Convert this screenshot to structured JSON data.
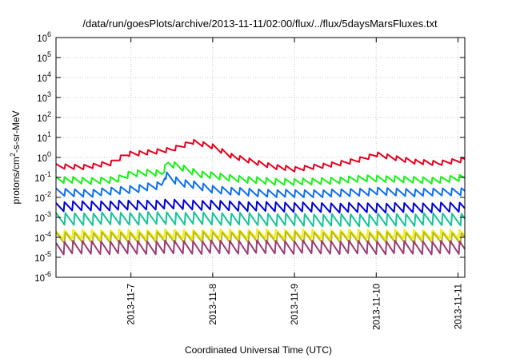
{
  "chart_data": {
    "type": "line",
    "title": "/data/run/goesPlots/archive/2013-11-11/02:00/flux/../flux/5daysMarsFluxes.txt",
    "xlabel": "Coordinated Universal Time (UTC)",
    "ylabel": "protons/cm²-s-sr-MeV",
    "ylabel_parts": {
      "pre": "protons/cm",
      "sup": "2",
      "post": "-s-sr-MeV"
    },
    "y_scale": "log",
    "ylim_exponents": [
      -6,
      6
    ],
    "yticks": [
      {
        "base": "10",
        "exp": "-6",
        "value": 1e-06
      },
      {
        "base": "10",
        "exp": "-5",
        "value": 1e-05
      },
      {
        "base": "10",
        "exp": "-4",
        "value": 0.0001
      },
      {
        "base": "10",
        "exp": "-3",
        "value": 0.001
      },
      {
        "base": "10",
        "exp": "-2",
        "value": 0.01
      },
      {
        "base": "10",
        "exp": "-1",
        "value": 0.1
      },
      {
        "base": "10",
        "exp": "0",
        "value": 1
      },
      {
        "base": "10",
        "exp": "1",
        "value": 10
      },
      {
        "base": "10",
        "exp": "2",
        "value": 100
      },
      {
        "base": "10",
        "exp": "3",
        "value": 1000
      },
      {
        "base": "10",
        "exp": "4",
        "value": 10000
      },
      {
        "base": "10",
        "exp": "5",
        "value": 100000
      },
      {
        "base": "10",
        "exp": "6",
        "value": 1000000
      }
    ],
    "xlim": [
      "2013-11-06 02:00",
      "2013-11-11 02:00"
    ],
    "xticks": [
      {
        "label": "2013-11-7",
        "date": "2013-11-07 00:00"
      },
      {
        "label": "2013-11-8",
        "date": "2013-11-08 00:00"
      },
      {
        "label": "2013-11-9",
        "date": "2013-11-09 00:00"
      },
      {
        "label": "2013-11-10",
        "date": "2013-11-10 00:00"
      },
      {
        "label": "2013-11-11",
        "date": "2013-11-11 00:00"
      }
    ],
    "grid": true,
    "sawtooth_period_hours": 2.7,
    "series": [
      {
        "color": "#e8001e",
        "points": [
          [
            "2013-11-06 02:00",
            0.35
          ],
          [
            "2013-11-06 10:00",
            0.33
          ],
          [
            "2013-11-06 18:00",
            0.5
          ],
          [
            "2013-11-06 23:00",
            1.5
          ],
          [
            "2013-11-07 06:00",
            1.8
          ],
          [
            "2013-11-07 12:00",
            2.5
          ],
          [
            "2013-11-07 18:00",
            6.0
          ],
          [
            "2013-11-08 00:00",
            3.5
          ],
          [
            "2013-11-08 06:00",
            1.1
          ],
          [
            "2013-11-08 12:00",
            0.6
          ],
          [
            "2013-11-08 18:00",
            0.35
          ],
          [
            "2013-11-09 00:00",
            0.25
          ],
          [
            "2013-11-09 06:00",
            0.35
          ],
          [
            "2013-11-09 12:00",
            0.45
          ],
          [
            "2013-11-09 18:00",
            0.7
          ],
          [
            "2013-11-10 00:00",
            1.4
          ],
          [
            "2013-11-10 06:00",
            0.9
          ],
          [
            "2013-11-10 12:00",
            0.6
          ],
          [
            "2013-11-10 18:00",
            0.5
          ],
          [
            "2013-11-11 02:00",
            0.8
          ]
        ],
        "tooth_factor": 1.8
      },
      {
        "color": "#16f316",
        "points": [
          [
            "2013-11-06 02:00",
            0.08
          ],
          [
            "2013-11-06 12:00",
            0.065
          ],
          [
            "2013-11-06 20:00",
            0.08
          ],
          [
            "2013-11-07 00:00",
            0.15
          ],
          [
            "2013-11-07 06:00",
            0.18
          ],
          [
            "2013-11-07 09:00",
            0.16
          ],
          [
            "2013-11-07 11:00",
            0.5
          ],
          [
            "2013-11-07 14:00",
            0.35
          ],
          [
            "2013-11-07 20:00",
            0.15
          ],
          [
            "2013-11-08 06:00",
            0.09
          ],
          [
            "2013-11-08 18:00",
            0.06
          ],
          [
            "2013-11-09 04:00",
            0.06
          ],
          [
            "2013-11-09 12:00",
            0.07
          ],
          [
            "2013-11-09 22:00",
            0.09
          ],
          [
            "2013-11-10 06:00",
            0.08
          ],
          [
            "2013-11-10 18:00",
            0.07
          ],
          [
            "2013-11-11 02:00",
            0.1
          ]
        ],
        "tooth_factor": 2.2
      },
      {
        "color": "#0c6ff0",
        "points": [
          [
            "2013-11-06 02:00",
            0.018
          ],
          [
            "2013-11-06 12:00",
            0.016
          ],
          [
            "2013-11-07 00:00",
            0.025
          ],
          [
            "2013-11-07 09:00",
            0.04
          ],
          [
            "2013-11-07 10:00",
            0.13
          ],
          [
            "2013-11-07 14:00",
            0.06
          ],
          [
            "2013-11-08 00:00",
            0.025
          ],
          [
            "2013-11-08 12:00",
            0.017
          ],
          [
            "2013-11-09 00:00",
            0.015
          ],
          [
            "2013-11-09 12:00",
            0.016
          ],
          [
            "2013-11-10 00:00",
            0.02
          ],
          [
            "2013-11-10 12:00",
            0.017
          ],
          [
            "2013-11-11 02:00",
            0.02
          ]
        ],
        "tooth_factor": 2.5
      },
      {
        "color": "#0000d8",
        "points": [
          [
            "2013-11-06 02:00",
            0.0035
          ],
          [
            "2013-11-07 00:00",
            0.004
          ],
          [
            "2013-11-07 12:00",
            0.0045
          ],
          [
            "2013-11-08 12:00",
            0.0035
          ],
          [
            "2013-11-09 12:00",
            0.003
          ],
          [
            "2013-11-10 12:00",
            0.003
          ],
          [
            "2013-11-11 02:00",
            0.0032
          ]
        ],
        "tooth_factor": 3.2
      },
      {
        "color": "#15c49a",
        "points": [
          [
            "2013-11-06 02:00",
            0.0008
          ],
          [
            "2013-11-07 12:00",
            0.0009
          ],
          [
            "2013-11-09 12:00",
            0.0007
          ],
          [
            "2013-11-11 02:00",
            0.0008
          ]
        ],
        "tooth_factor": 4.5
      },
      {
        "color": "#f2ee1a",
        "points": [
          [
            "2013-11-06 02:00",
            0.00014
          ],
          [
            "2013-11-08 12:00",
            0.00015
          ],
          [
            "2013-11-11 02:00",
            0.00014
          ]
        ],
        "tooth_factor": 3.0
      },
      {
        "color": "#b8b818",
        "points": [
          [
            "2013-11-06 02:00",
            9e-05
          ],
          [
            "2013-11-08 12:00",
            0.0001
          ],
          [
            "2013-11-11 02:00",
            9e-05
          ]
        ],
        "tooth_factor": 4.0
      },
      {
        "color": "#9b3c72",
        "points": [
          [
            "2013-11-06 02:00",
            3e-05
          ],
          [
            "2013-11-08 12:00",
            3.2e-05
          ],
          [
            "2013-11-11 02:00",
            3e-05
          ]
        ],
        "tooth_factor": 5.0
      }
    ]
  }
}
